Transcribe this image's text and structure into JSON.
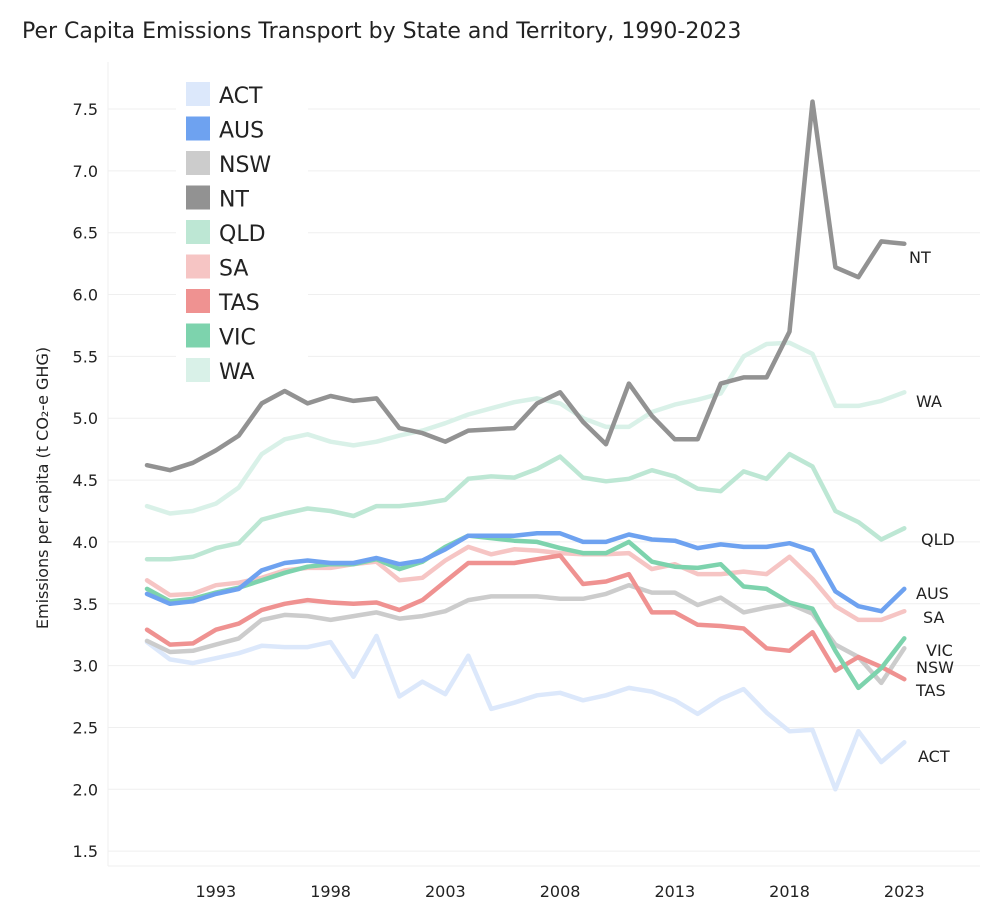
{
  "chart_data": {
    "type": "line",
    "title": "Per Capita Emissions Transport by State and Territory, 1990-2023",
    "ylabel": "Emissions per capita (t CO₂-e GHG)",
    "xlabel": "",
    "xlim": [
      1988.3,
      2026.3
    ],
    "ylim": [
      1.38,
      7.88
    ],
    "x_ticks": [
      1993,
      1998,
      2003,
      2008,
      2013,
      2018,
      2023
    ],
    "y_ticks": [
      1.5,
      2.0,
      2.5,
      3.0,
      3.5,
      4.0,
      4.5,
      5.0,
      5.5,
      6.0,
      6.5,
      7.0,
      7.5
    ],
    "grid": true,
    "legend_position": "top-left",
    "x": [
      1990,
      1991,
      1992,
      1993,
      1994,
      1995,
      1996,
      1997,
      1998,
      1999,
      2000,
      2001,
      2002,
      2003,
      2004,
      2005,
      2006,
      2007,
      2008,
      2009,
      2010,
      2011,
      2012,
      2013,
      2014,
      2015,
      2016,
      2017,
      2018,
      2019,
      2020,
      2021,
      2022,
      2023
    ],
    "series": [
      {
        "name": "ACT",
        "color": "#dce8fb",
        "end_label": "ACT",
        "values": [
          3.19,
          3.05,
          3.02,
          3.06,
          3.1,
          3.16,
          3.15,
          3.15,
          3.19,
          2.91,
          3.24,
          2.75,
          2.87,
          2.77,
          3.08,
          2.65,
          2.7,
          2.76,
          2.78,
          2.72,
          2.76,
          2.82,
          2.79,
          2.72,
          2.61,
          2.73,
          2.81,
          2.62,
          2.47,
          2.48,
          2.0,
          2.47,
          2.22,
          2.38
        ]
      },
      {
        "name": "AUS",
        "color": "#6ea2f0",
        "end_label": "AUS",
        "values": [
          3.58,
          3.5,
          3.52,
          3.58,
          3.62,
          3.77,
          3.83,
          3.85,
          3.83,
          3.83,
          3.87,
          3.82,
          3.85,
          3.94,
          4.05,
          4.05,
          4.05,
          4.07,
          4.07,
          4.0,
          4.0,
          4.06,
          4.02,
          4.01,
          3.95,
          3.98,
          3.96,
          3.96,
          3.99,
          3.93,
          3.6,
          3.48,
          3.44,
          3.62
        ]
      },
      {
        "name": "NSW",
        "color": "#cccccc",
        "end_label": "NSW",
        "values": [
          3.2,
          3.11,
          3.12,
          3.17,
          3.22,
          3.37,
          3.41,
          3.4,
          3.37,
          3.4,
          3.43,
          3.38,
          3.4,
          3.44,
          3.53,
          3.56,
          3.56,
          3.56,
          3.54,
          3.54,
          3.58,
          3.65,
          3.59,
          3.59,
          3.49,
          3.55,
          3.43,
          3.47,
          3.5,
          3.42,
          3.17,
          3.07,
          2.86,
          3.14
        ]
      },
      {
        "name": "NT",
        "color": "#929292",
        "end_label": "NT",
        "values": [
          4.62,
          4.58,
          4.64,
          4.74,
          4.86,
          5.12,
          5.22,
          5.12,
          5.18,
          5.14,
          5.16,
          4.92,
          4.88,
          4.81,
          4.9,
          4.91,
          4.92,
          5.12,
          5.21,
          4.97,
          4.79,
          5.28,
          5.02,
          4.83,
          4.83,
          5.28,
          5.33,
          5.33,
          5.7,
          7.56,
          6.22,
          6.14,
          6.43,
          6.41
        ]
      },
      {
        "name": "QLD",
        "color": "#bde7d4",
        "end_label": "QLD",
        "values": [
          3.86,
          3.86,
          3.88,
          3.95,
          3.99,
          4.18,
          4.23,
          4.27,
          4.25,
          4.21,
          4.29,
          4.29,
          4.31,
          4.34,
          4.51,
          4.53,
          4.52,
          4.59,
          4.69,
          4.52,
          4.49,
          4.51,
          4.58,
          4.53,
          4.43,
          4.41,
          4.57,
          4.51,
          4.71,
          4.61,
          4.25,
          4.16,
          4.02,
          4.11
        ]
      },
      {
        "name": "SA",
        "color": "#f6c5c4",
        "end_label": "SA",
        "values": [
          3.69,
          3.57,
          3.58,
          3.65,
          3.67,
          3.71,
          3.77,
          3.79,
          3.79,
          3.82,
          3.84,
          3.69,
          3.71,
          3.85,
          3.96,
          3.9,
          3.94,
          3.93,
          3.91,
          3.9,
          3.9,
          3.91,
          3.78,
          3.82,
          3.74,
          3.74,
          3.76,
          3.74,
          3.88,
          3.7,
          3.48,
          3.37,
          3.37,
          3.44
        ]
      },
      {
        "name": "TAS",
        "color": "#ef9291",
        "end_label": "TAS",
        "values": [
          3.29,
          3.17,
          3.18,
          3.29,
          3.34,
          3.45,
          3.5,
          3.53,
          3.51,
          3.5,
          3.51,
          3.45,
          3.53,
          3.68,
          3.83,
          3.83,
          3.83,
          3.86,
          3.89,
          3.66,
          3.68,
          3.74,
          3.43,
          3.43,
          3.33,
          3.32,
          3.3,
          3.14,
          3.12,
          3.27,
          2.96,
          3.07,
          2.99,
          2.89
        ]
      },
      {
        "name": "VIC",
        "color": "#7dd3ad",
        "end_label": "VIC",
        "values": [
          3.62,
          3.52,
          3.54,
          3.59,
          3.63,
          3.69,
          3.75,
          3.8,
          3.82,
          3.82,
          3.86,
          3.78,
          3.84,
          3.96,
          4.05,
          4.03,
          4.01,
          4.0,
          3.95,
          3.91,
          3.91,
          4.0,
          3.84,
          3.8,
          3.79,
          3.82,
          3.64,
          3.62,
          3.51,
          3.46,
          3.12,
          2.82,
          2.98,
          3.22
        ]
      },
      {
        "name": "WA",
        "color": "#d9f1e8",
        "end_label": "WA",
        "values": [
          4.29,
          4.23,
          4.25,
          4.31,
          4.44,
          4.71,
          4.83,
          4.87,
          4.81,
          4.78,
          4.81,
          4.86,
          4.9,
          4.96,
          5.03,
          5.08,
          5.13,
          5.16,
          5.12,
          5.0,
          4.93,
          4.93,
          5.05,
          5.11,
          5.15,
          5.2,
          5.5,
          5.6,
          5.61,
          5.52,
          5.1,
          5.1,
          5.14,
          5.21
        ]
      }
    ]
  }
}
